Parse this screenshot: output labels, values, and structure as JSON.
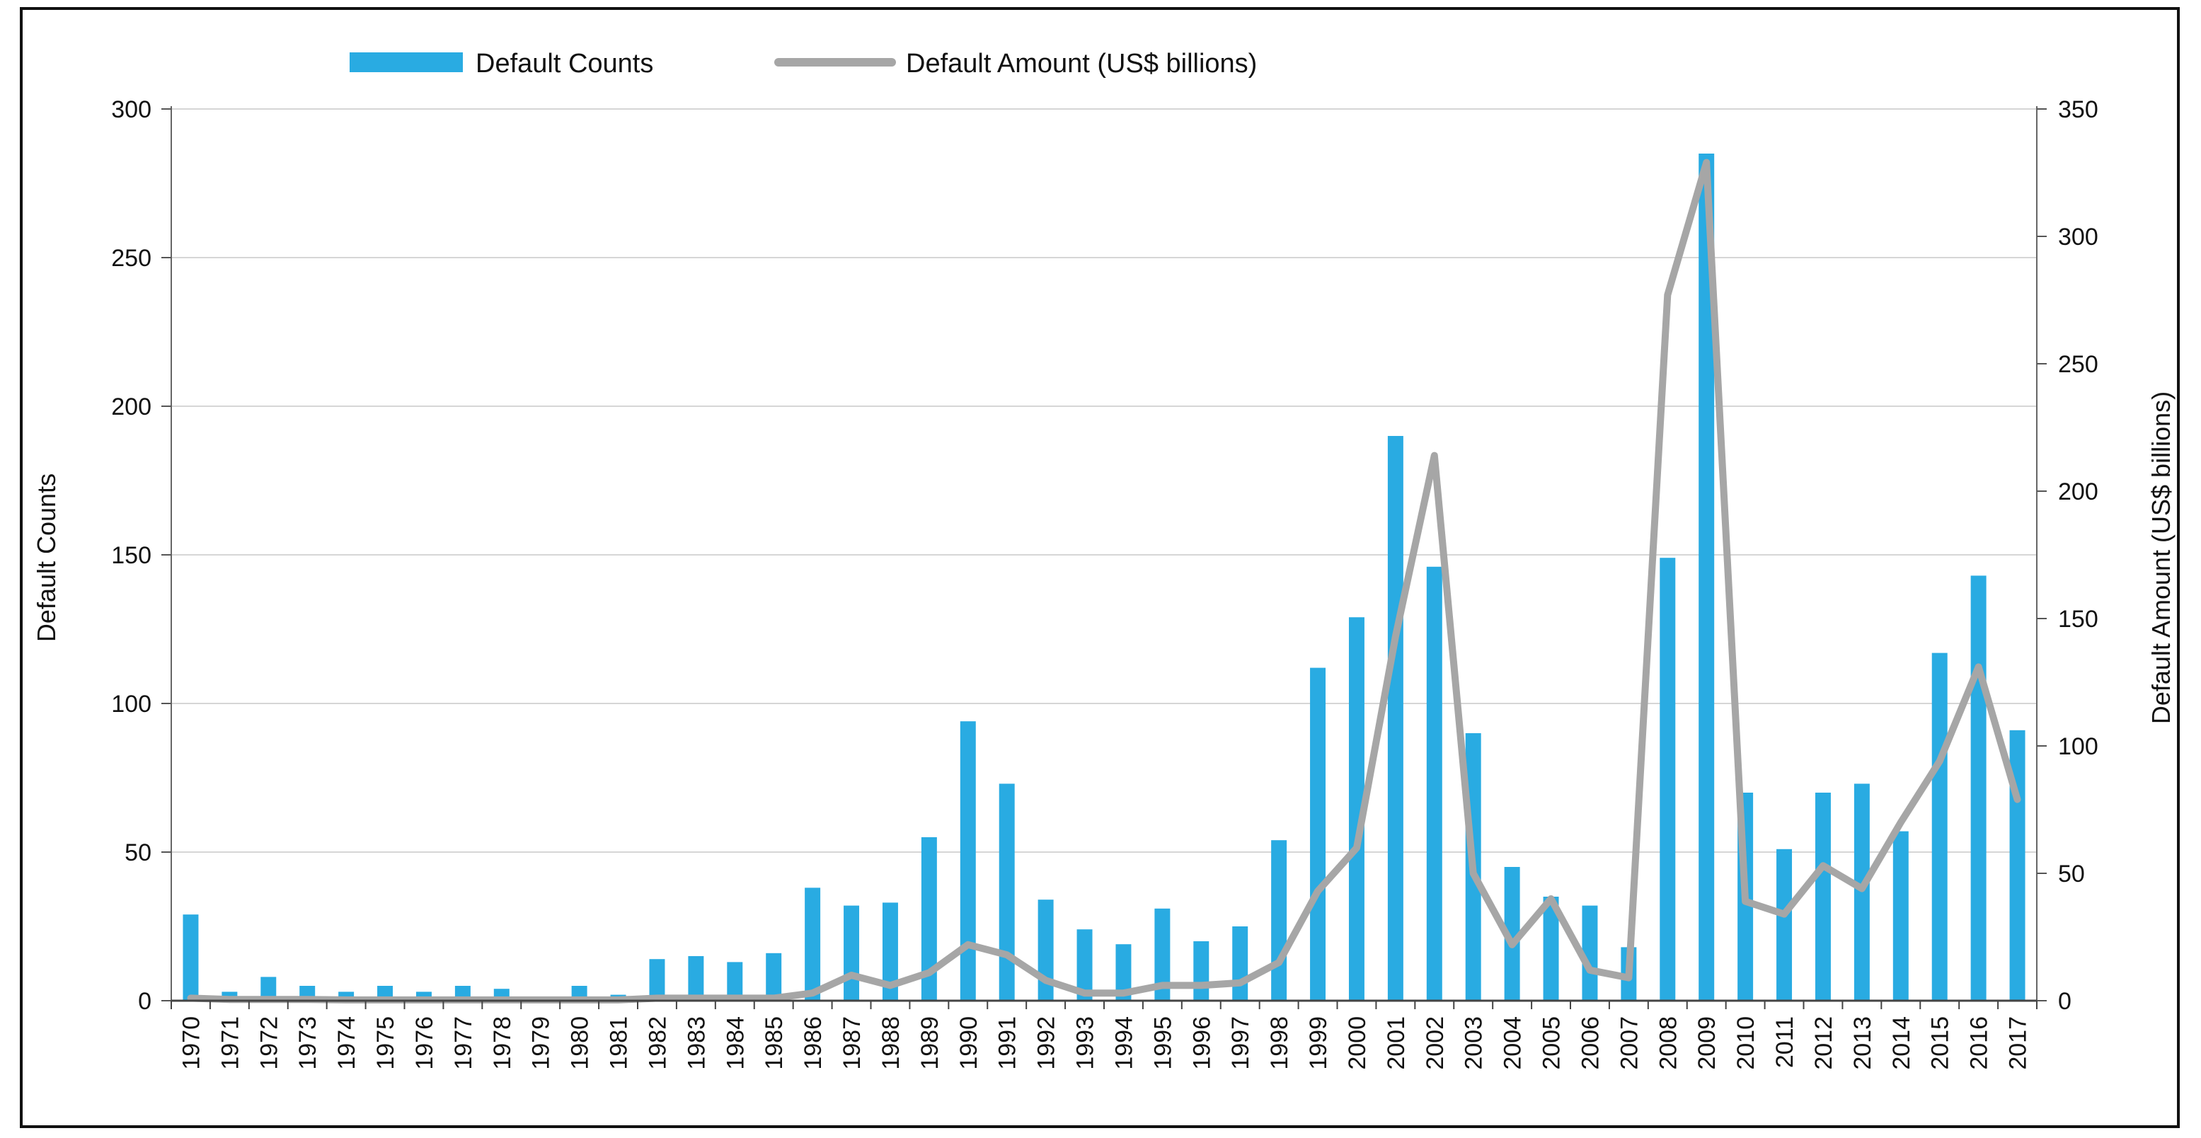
{
  "chart_data": {
    "type": "bar",
    "legend_position": "top-center",
    "grid": true,
    "x": [
      "1970",
      "1971",
      "1972",
      "1973",
      "1974",
      "1975",
      "1976",
      "1977",
      "1978",
      "1979",
      "1980",
      "1981",
      "1982",
      "1983",
      "1984",
      "1985",
      "1986",
      "1987",
      "1988",
      "1989",
      "1990",
      "1991",
      "1992",
      "1993",
      "1994",
      "1995",
      "1996",
      "1997",
      "1998",
      "1999",
      "2000",
      "2001",
      "2002",
      "2003",
      "2004",
      "2005",
      "2006",
      "2007",
      "2008",
      "2009",
      "2010",
      "2011",
      "2012",
      "2013",
      "2014",
      "2015",
      "2016",
      "2017"
    ],
    "left_axis": {
      "label": "Default Counts",
      "ylim": [
        0,
        300
      ],
      "ticks": [
        "0",
        "50",
        "100",
        "150",
        "200",
        "250",
        "300"
      ]
    },
    "right_axis": {
      "label": "Default Amount (US$ billions)",
      "ylim": [
        0,
        350
      ],
      "ticks": [
        "0",
        "50",
        "100",
        "150",
        "200",
        "250",
        "300",
        "350"
      ]
    },
    "series": [
      {
        "name": "Default Counts",
        "type": "bar",
        "axis": "left",
        "color": "#29abe2",
        "values": [
          29,
          3,
          8,
          5,
          3,
          5,
          3,
          5,
          4,
          0,
          5,
          2,
          14,
          15,
          13,
          16,
          38,
          32,
          33,
          55,
          94,
          73,
          34,
          24,
          19,
          31,
          20,
          25,
          54,
          112,
          129,
          190,
          146,
          90,
          45,
          35,
          32,
          18,
          149,
          285,
          70,
          51,
          70,
          73,
          57,
          117,
          143,
          91
        ]
      },
      {
        "name": "Default Amount (US$ billions)",
        "type": "line",
        "axis": "right",
        "color": "#a6a6a6",
        "values": [
          1,
          0.5,
          0.5,
          0.5,
          0.3,
          0.3,
          0.3,
          0.3,
          0.3,
          0.3,
          0.3,
          0.3,
          1,
          1,
          1,
          1,
          3,
          10,
          6,
          11,
          22,
          18,
          8,
          3,
          3,
          6,
          6,
          7,
          15,
          43,
          60,
          143,
          214,
          50,
          22,
          40,
          12,
          9,
          277,
          329,
          39,
          34,
          53,
          44,
          70,
          94,
          131,
          79
        ]
      }
    ]
  }
}
